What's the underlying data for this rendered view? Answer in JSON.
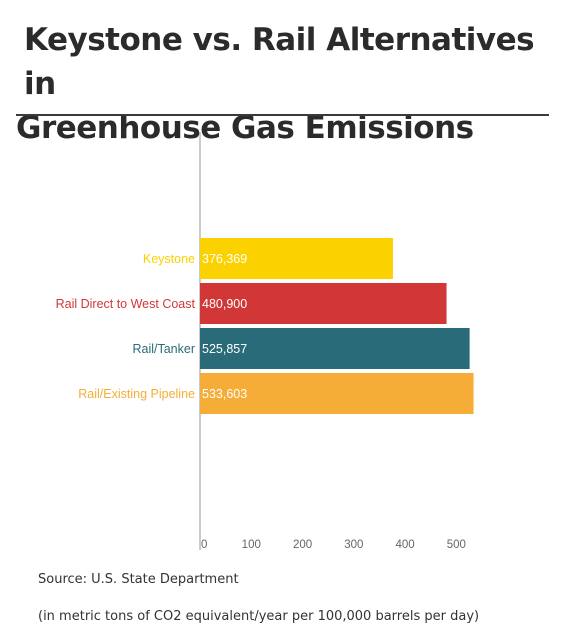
{
  "title": {
    "line1": "Keystone vs. Rail Alternatives in",
    "line2": "Greenhouse Gas Emissions"
  },
  "chart_data": {
    "type": "bar",
    "orientation": "horizontal",
    "categories": [
      "Keystone",
      "Rail Direct to West Coast",
      "Rail/Tanker",
      "Rail/Existing Pipeline"
    ],
    "values": [
      376369,
      480900,
      525857,
      533603
    ],
    "value_labels": [
      "376,369",
      "480,900",
      "525,857",
      "533,603"
    ],
    "colors": [
      "#fcd100",
      "#d23737",
      "#2a6b79",
      "#f6ad37"
    ],
    "x_ticks": [
      0,
      100,
      200,
      300,
      400,
      500
    ],
    "x_tick_labels": [
      "0",
      "100",
      "200",
      "300",
      "400",
      "500"
    ],
    "x_tick_unit": 1000,
    "xlim": [
      0,
      540000
    ],
    "grid": false,
    "legend": "none"
  },
  "footer": {
    "source": "Source: U.S. State Department",
    "note": "(in metric tons of CO2 equivalent/year per 100,000 barrels per day)"
  }
}
